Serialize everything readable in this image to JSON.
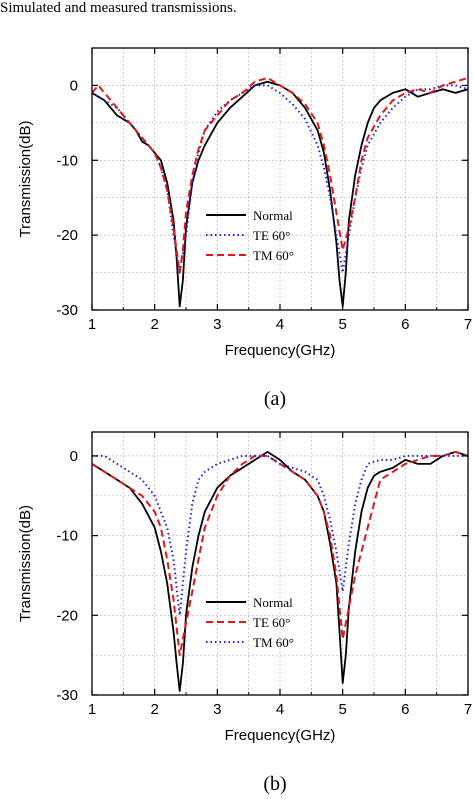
{
  "caption": "Simulated and measured transmissions.",
  "chart_data": [
    {
      "type": "line",
      "panel_label": "(a)",
      "xlabel": "Frequency(GHz)",
      "ylabel": "Transmission(dB)",
      "xlim": [
        1,
        7
      ],
      "ylim": [
        -30,
        5
      ],
      "xticks": [
        "1",
        "2",
        "3",
        "4",
        "5",
        "6",
        "7"
      ],
      "yticks": [
        "0",
        "-10",
        "-20",
        "-30"
      ],
      "grid": true,
      "legend": "center",
      "series": [
        {
          "name": "Normal",
          "color": "#000000",
          "dash": "solid",
          "x": [
            1.0,
            1.1,
            1.2,
            1.3,
            1.4,
            1.5,
            1.6,
            1.7,
            1.8,
            1.9,
            2.0,
            2.1,
            2.2,
            2.3,
            2.35,
            2.4,
            2.45,
            2.5,
            2.6,
            2.7,
            2.8,
            2.9,
            3.0,
            3.2,
            3.4,
            3.6,
            3.8,
            4.0,
            4.2,
            4.4,
            4.6,
            4.7,
            4.8,
            4.9,
            4.95,
            5.0,
            5.05,
            5.1,
            5.2,
            5.3,
            5.4,
            5.5,
            5.6,
            5.8,
            6.0,
            6.2,
            6.4,
            6.6,
            6.8,
            7.0
          ],
          "y": [
            -1,
            -1.5,
            -2,
            -3,
            -4,
            -4.5,
            -5,
            -6,
            -7.5,
            -8,
            -9,
            -10,
            -13,
            -18,
            -23,
            -29.5,
            -26,
            -19,
            -13,
            -10,
            -8,
            -6.5,
            -5,
            -3,
            -1.5,
            0,
            0.5,
            0,
            -1,
            -3,
            -6,
            -9,
            -14,
            -21,
            -26,
            -29.5,
            -25,
            -18,
            -12,
            -8,
            -5,
            -3,
            -2,
            -1,
            -0.5,
            -1.5,
            -1,
            -0.5,
            -1,
            -0.5
          ]
        },
        {
          "name": "TE  60°",
          "color": "#1f1fd6",
          "dash": "dot",
          "x": [
            1.0,
            1.2,
            1.4,
            1.6,
            1.8,
            2.0,
            2.1,
            2.2,
            2.3,
            2.4,
            2.5,
            2.6,
            2.7,
            2.8,
            3.0,
            3.2,
            3.4,
            3.6,
            3.8,
            4.0,
            4.2,
            4.4,
            4.6,
            4.7,
            4.8,
            4.9,
            5.0,
            5.1,
            5.2,
            5.3,
            5.4,
            5.6,
            5.8,
            6.0,
            6.2,
            6.4,
            6.6,
            6.8,
            7.0
          ],
          "y": [
            -1,
            -2,
            -3,
            -5,
            -7,
            -9,
            -11,
            -14,
            -20,
            -25,
            -20,
            -13,
            -9,
            -6,
            -3.5,
            -2,
            -1,
            0,
            0,
            -1,
            -2.5,
            -4.5,
            -8,
            -11,
            -15,
            -20,
            -25,
            -20,
            -15,
            -11,
            -8,
            -5,
            -3,
            -1.5,
            -0.5,
            -0.5,
            0,
            0,
            -0.5
          ]
        },
        {
          "name": "TM 60°",
          "color": "#e01818",
          "dash": "dash",
          "x": [
            1.0,
            1.1,
            1.2,
            1.4,
            1.6,
            1.8,
            2.0,
            2.1,
            2.2,
            2.3,
            2.4,
            2.45,
            2.5,
            2.6,
            2.7,
            2.8,
            3.0,
            3.2,
            3.4,
            3.6,
            3.8,
            4.0,
            4.2,
            4.4,
            4.6,
            4.7,
            4.8,
            4.9,
            5.0,
            5.1,
            5.2,
            5.3,
            5.4,
            5.6,
            5.8,
            6.0,
            6.2,
            6.4,
            6.6,
            6.8,
            7.0
          ],
          "y": [
            -1,
            0,
            -1,
            -3,
            -5,
            -7,
            -9,
            -11,
            -14,
            -19,
            -25,
            -22,
            -17,
            -12,
            -8.5,
            -6,
            -4,
            -2,
            -1,
            0.5,
            1,
            0,
            -1,
            -2.5,
            -5,
            -8,
            -12,
            -17,
            -22,
            -19,
            -15,
            -10,
            -7,
            -4,
            -2,
            -1,
            -0.5,
            -1,
            0,
            0.5,
            1
          ]
        }
      ]
    },
    {
      "type": "line",
      "panel_label": "(b)",
      "xlabel": "Frequency(GHz)",
      "ylabel": "Transmission(dB)",
      "xlim": [
        1,
        7
      ],
      "ylim": [
        -30,
        3
      ],
      "xticks": [
        "1",
        "2",
        "3",
        "4",
        "5",
        "6",
        "7"
      ],
      "yticks": [
        "0",
        "-10",
        "-20",
        "-30"
      ],
      "grid": true,
      "legend": "center",
      "series": [
        {
          "name": "Normal",
          "color": "#000000",
          "dash": "solid",
          "x": [
            1.0,
            1.2,
            1.4,
            1.6,
            1.8,
            2.0,
            2.1,
            2.2,
            2.3,
            2.35,
            2.4,
            2.45,
            2.5,
            2.6,
            2.7,
            2.8,
            3.0,
            3.2,
            3.4,
            3.6,
            3.8,
            4.0,
            4.2,
            4.4,
            4.6,
            4.7,
            4.8,
            4.9,
            4.95,
            5.0,
            5.05,
            5.1,
            5.2,
            5.3,
            5.4,
            5.5,
            5.6,
            5.8,
            6.0,
            6.2,
            6.4,
            6.6,
            6.8,
            7.0
          ],
          "y": [
            -1,
            -2,
            -3,
            -4,
            -6,
            -9,
            -12,
            -16,
            -22,
            -26,
            -29.5,
            -26,
            -20,
            -14,
            -10,
            -7,
            -4,
            -2.5,
            -1.5,
            -0.5,
            0.5,
            -0.5,
            -2,
            -3,
            -5,
            -7,
            -11,
            -16,
            -22,
            -28.5,
            -25,
            -19,
            -12,
            -7,
            -4,
            -2.5,
            -2,
            -1.5,
            -0.5,
            -1,
            -1,
            0,
            0.5,
            0
          ]
        },
        {
          "name": "TE 60°",
          "color": "#e01818",
          "dash": "dash",
          "x": [
            1.0,
            1.2,
            1.4,
            1.6,
            1.8,
            2.0,
            2.1,
            2.2,
            2.3,
            2.4,
            2.5,
            2.6,
            2.7,
            2.8,
            3.0,
            3.2,
            3.4,
            3.6,
            3.8,
            4.0,
            4.2,
            4.4,
            4.6,
            4.7,
            4.8,
            4.9,
            5.0,
            5.1,
            5.2,
            5.3,
            5.4,
            5.5,
            5.6,
            5.8,
            6.0,
            6.2,
            6.4,
            6.6,
            6.8,
            7.0
          ],
          "y": [
            -1,
            -2,
            -3,
            -4,
            -5,
            -7,
            -9,
            -13,
            -18,
            -25,
            -21,
            -17,
            -13,
            -9,
            -5,
            -2.5,
            -1,
            0,
            0,
            -1,
            -2,
            -3,
            -5,
            -7,
            -10,
            -15,
            -23,
            -19,
            -15,
            -12,
            -9,
            -6,
            -3,
            -2,
            -1,
            -0.5,
            0,
            0,
            0.5,
            0
          ]
        },
        {
          "name": "TM 60°",
          "color": "#1f1fd6",
          "dash": "dot",
          "x": [
            1.0,
            1.2,
            1.4,
            1.6,
            1.8,
            2.0,
            2.1,
            2.2,
            2.3,
            2.4,
            2.5,
            2.6,
            2.7,
            2.8,
            3.0,
            3.2,
            3.4,
            3.6,
            3.8,
            4.0,
            4.2,
            4.4,
            4.6,
            4.7,
            4.8,
            4.9,
            5.0,
            5.1,
            5.2,
            5.3,
            5.4,
            5.6,
            5.8,
            6.0,
            6.2,
            6.4,
            6.6,
            6.8,
            7.0
          ],
          "y": [
            0,
            0,
            -1,
            -2,
            -3,
            -5,
            -7,
            -9,
            -13,
            -20,
            -12,
            -6,
            -3,
            -2,
            -1,
            -0.5,
            0,
            0,
            0,
            -1,
            -1.5,
            -2,
            -3,
            -5,
            -8,
            -12,
            -17,
            -11,
            -6,
            -3,
            -1,
            -0.5,
            -0.5,
            0,
            0,
            0,
            0,
            0,
            0
          ]
        }
      ]
    }
  ]
}
